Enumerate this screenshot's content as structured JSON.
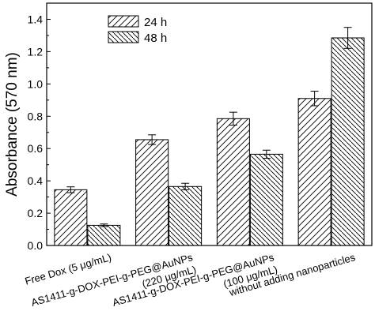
{
  "chart_data": {
    "type": "bar",
    "ylabel": "Absorbance (570 nm)",
    "xlabel": "",
    "ylim": [
      0,
      1.5
    ],
    "yticks": [
      "0.0",
      "0.2",
      "0.4",
      "0.6",
      "0.8",
      "1.0",
      "1.2",
      "1.4"
    ],
    "grid": false,
    "legend_position": "top-left",
    "categories": [
      [
        "Free Dox (5 μg/mL)"
      ],
      [
        "AS1411-g-DOX-PEI-g-PEG@AuNPs",
        "(220 μg/mL)"
      ],
      [
        "AS1411-g-DOX-PEI-g-PEG@AuNPs",
        "(100 μg/mL)"
      ],
      [
        "without adding nanoparticles"
      ]
    ],
    "series": [
      {
        "name": "24 h",
        "pattern": "single-hatch",
        "values": [
          0.345,
          0.655,
          0.785,
          0.91
        ],
        "errors": [
          0.018,
          0.03,
          0.04,
          0.045
        ]
      },
      {
        "name": "48 h",
        "pattern": "dense-hatch",
        "values": [
          0.125,
          0.365,
          0.565,
          1.285
        ],
        "errors": [
          0.008,
          0.02,
          0.025,
          0.065
        ]
      }
    ],
    "colors": {
      "stroke": "#000000",
      "fill": "#ffffff"
    }
  }
}
